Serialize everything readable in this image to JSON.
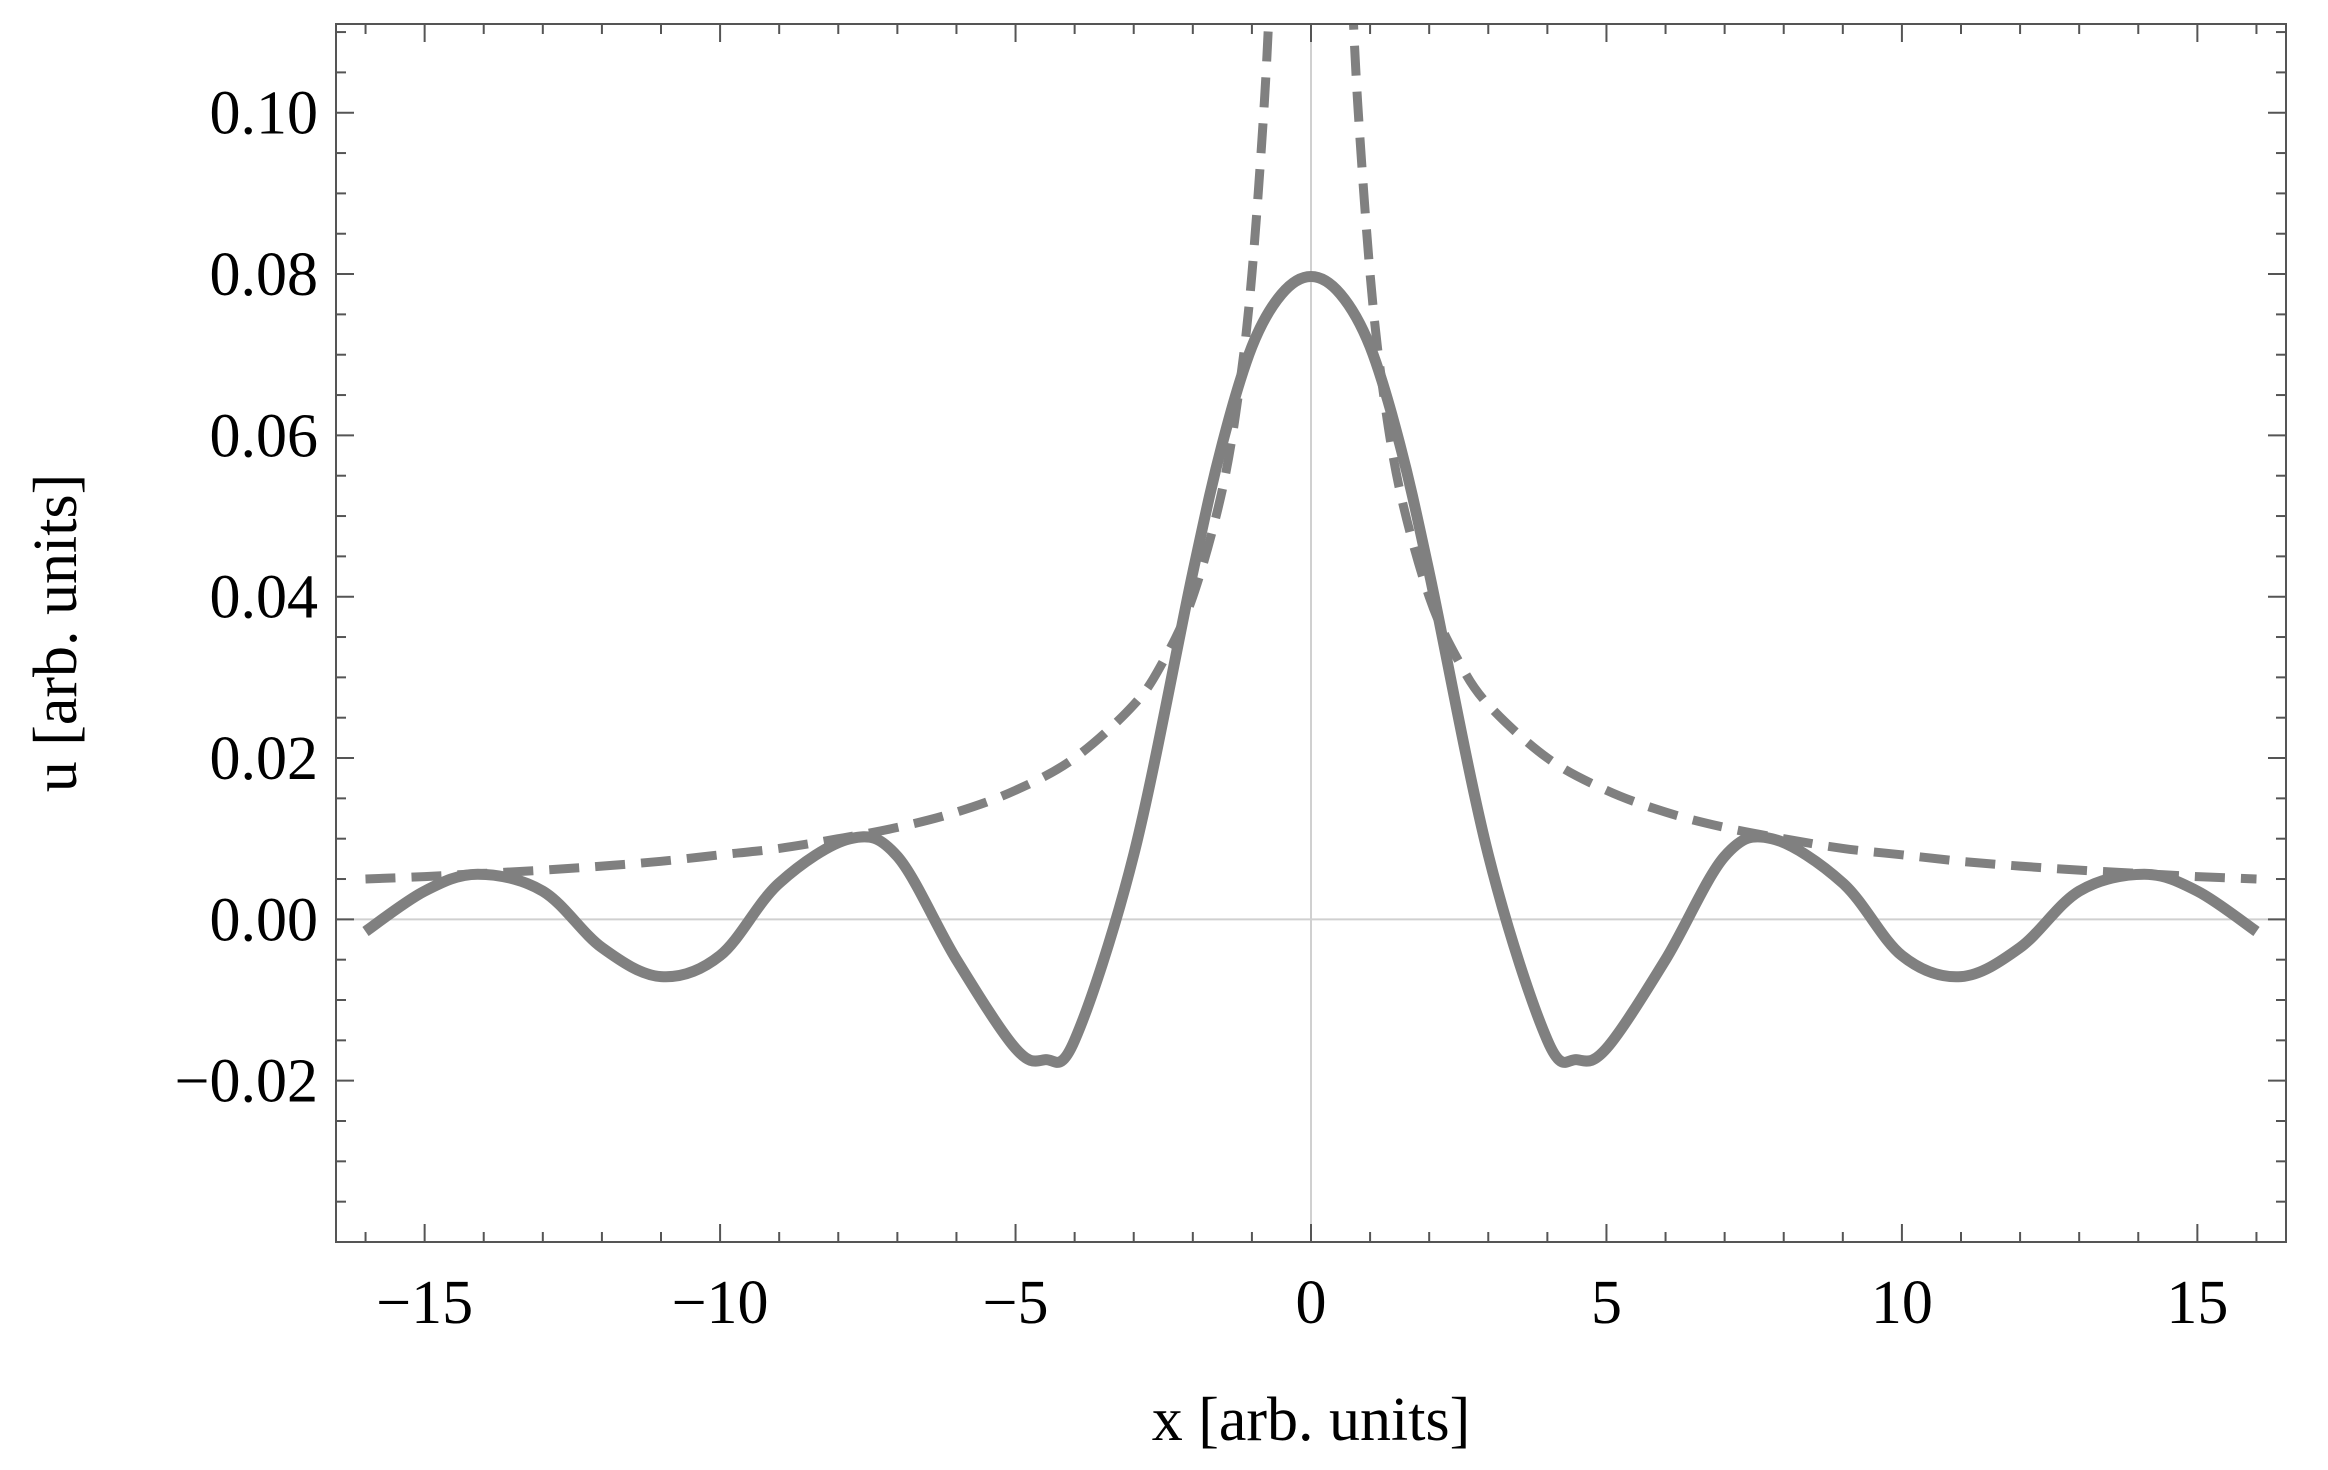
{
  "chart_data": {
    "type": "line",
    "xlabel": "x [arb. units]",
    "ylabel": "u [arb. units]",
    "xlim": [
      -16.5,
      16.5
    ],
    "ylim": [
      -0.04,
      0.111
    ],
    "x_ticks": [
      -15,
      -10,
      -5,
      0,
      5,
      10,
      15
    ],
    "x_tick_labels": [
      "−15",
      "−10",
      "−5",
      "0",
      "5",
      "10",
      "15"
    ],
    "y_ticks": [
      -0.02,
      0.0,
      0.02,
      0.04,
      0.06,
      0.08,
      0.1
    ],
    "y_tick_labels": [
      "−0.02",
      "0.00",
      "0.02",
      "0.04",
      "0.06",
      "0.08",
      "0.10"
    ],
    "grid": false,
    "zero_lines": true,
    "line_color": "#808080",
    "series": [
      {
        "style": "solid",
        "x": [
          -16,
          -15,
          -14.1,
          -13,
          -12,
          -11,
          -10,
          -9,
          -7.8,
          -7,
          -6,
          -5,
          -4.5,
          -4,
          -3,
          -2,
          -1.5,
          -1,
          -0.5,
          0,
          0.5,
          1,
          1.5,
          2,
          3,
          4,
          4.5,
          5,
          6,
          7,
          7.8,
          9,
          10,
          11,
          12,
          13,
          14.1,
          15,
          16
        ],
        "y": [
          -0.0015,
          0.0035,
          0.0056,
          0.0035,
          -0.0035,
          -0.0071,
          -0.0045,
          0.0045,
          0.01,
          0.0078,
          -0.005,
          -0.016,
          -0.0174,
          -0.015,
          0.008,
          0.043,
          0.059,
          0.071,
          0.0775,
          0.0797,
          0.0775,
          0.071,
          0.059,
          0.043,
          0.008,
          -0.015,
          -0.0174,
          -0.016,
          -0.005,
          0.0078,
          0.01,
          0.0045,
          -0.0045,
          -0.0071,
          -0.0035,
          0.0035,
          0.0056,
          0.0035,
          -0.0015
        ]
      },
      {
        "style": "dashed",
        "x": [
          -16,
          -15,
          -14,
          -13,
          -12,
          -11,
          -10,
          -9,
          -8,
          -7,
          -6,
          -5,
          -4,
          -3,
          -2.5,
          -2,
          -1.5,
          -1.2,
          -1,
          -0.8,
          -0.7,
          0.7,
          0.8,
          1,
          1.2,
          1.5,
          2,
          2.5,
          3,
          4,
          5,
          6,
          7,
          8,
          9,
          10,
          11,
          12,
          13,
          14,
          15,
          16
        ],
        "y": [
          0.005,
          0.0053,
          0.0057,
          0.0061,
          0.0066,
          0.0072,
          0.008,
          0.0088,
          0.01,
          0.0114,
          0.0133,
          0.016,
          0.02,
          0.0266,
          0.032,
          0.04,
          0.0533,
          0.0666,
          0.08,
          0.1,
          0.114,
          0.114,
          0.1,
          0.08,
          0.0666,
          0.0533,
          0.04,
          0.032,
          0.0266,
          0.02,
          0.016,
          0.0133,
          0.0114,
          0.01,
          0.0088,
          0.008,
          0.0072,
          0.0066,
          0.0061,
          0.0057,
          0.0053,
          0.005
        ]
      }
    ]
  }
}
